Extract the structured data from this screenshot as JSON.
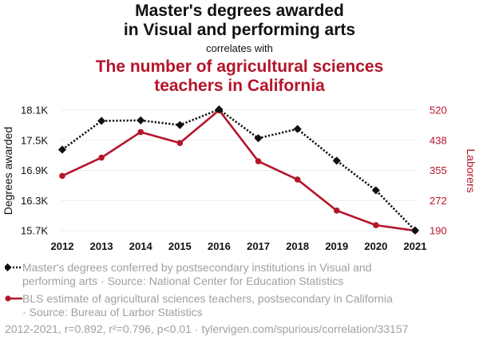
{
  "title_line1": "Master's degrees awarded",
  "title_line2": "in Visual and performing arts",
  "correlates": "correlates with",
  "title2_line1": "The number of agricultural sciences",
  "title2_line2": "teachers in California",
  "colors": {
    "series1": "#111111",
    "series2": "#b5152b",
    "grid": "#ececec",
    "legend_text": "#a0a0a0"
  },
  "chart_data": {
    "type": "line",
    "x": [
      "2012",
      "2013",
      "2014",
      "2015",
      "2016",
      "2017",
      "2018",
      "2019",
      "2020",
      "2021"
    ],
    "series": [
      {
        "name": "Master's degrees conferred by postsecondary institutions in Visual and performing arts · Source: National Center for Education Statistics",
        "axis": "left",
        "values": [
          17314,
          17886,
          17896,
          17803,
          18114,
          17541,
          17725,
          17093,
          16503,
          15704
        ]
      },
      {
        "name": "BLS estimate of agricultural sciences teachers, postsecondary in California · Source: Bureau of Larbor Statistics",
        "axis": "right",
        "values": [
          340,
          390,
          460,
          430,
          520,
          380,
          330,
          245,
          205,
          190
        ]
      }
    ],
    "y_left": {
      "label": "Degrees awarded",
      "ticks": [
        "15.7K",
        "16.3K",
        "16.9K",
        "17.5K",
        "18.1K"
      ],
      "lim": [
        15700,
        18100
      ]
    },
    "y_right": {
      "label": "Laborers",
      "ticks": [
        "190",
        "272",
        "355",
        "438",
        "520"
      ],
      "lim": [
        190,
        520
      ]
    },
    "grid": true
  },
  "legend": [
    {
      "text_line1": "Master's degrees conferred by postsecondary institutions in Visual and",
      "text_line2": "performing arts · Source: National Center for Education Statistics"
    },
    {
      "text_line1": "BLS estimate of agricultural sciences teachers, postsecondary in California",
      "text_line2": "· Source: Bureau of Larbor Statistics"
    }
  ],
  "footer": "2012-2021, r=0.892, r²=0.796, p<0.01 · tylervigen.com/spurious/correlation/33157"
}
